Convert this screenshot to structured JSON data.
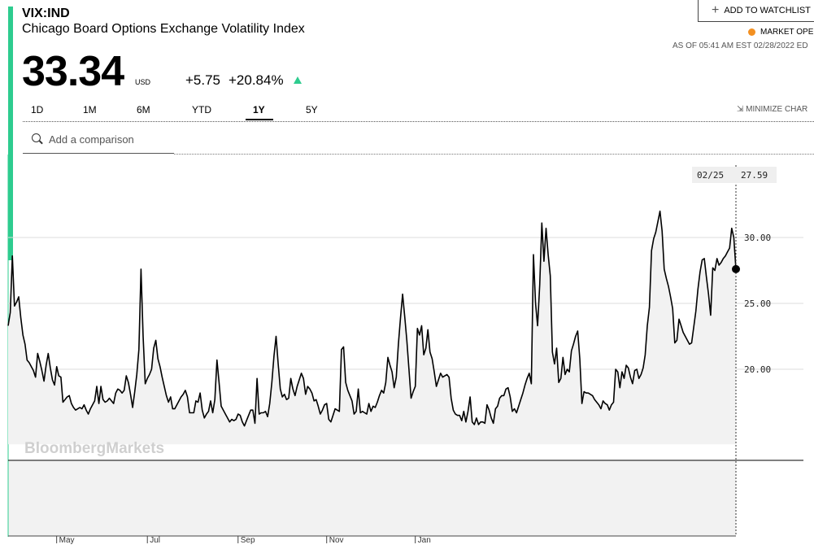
{
  "header": {
    "ticker": "VIX:IND",
    "full_name": "Chicago Board Options Exchange Volatility Index",
    "price": "33.34",
    "currency": "USD",
    "change": "+5.75",
    "change_pct": "+20.84%",
    "direction": "up",
    "watchlist_label": "ADD TO WATCHLIST",
    "market_status": "MARKET OPE",
    "as_of": "AS OF 05:41 AM EST 02/28/2022 ED"
  },
  "colors": {
    "accent": "#2ecc8f",
    "market_dot": "#f39021",
    "line": "#000000",
    "area_fill": "#f2f2f2"
  },
  "ranges": {
    "tabs": [
      {
        "label": "1D"
      },
      {
        "label": "1M"
      },
      {
        "label": "6M"
      },
      {
        "label": "YTD"
      },
      {
        "label": "1Y"
      },
      {
        "label": "5Y"
      }
    ],
    "active": "1Y",
    "minimize_label": "MINIMIZE CHAR"
  },
  "comparison": {
    "placeholder": "Add a comparison"
  },
  "watermark": "BloombergMarkets",
  "cursor": {
    "date": "02/25",
    "value": "27.59"
  },
  "chart_data": {
    "type": "area",
    "title": "",
    "xlabel": "",
    "ylabel": "",
    "ylim": [
      8.0,
      38.0
    ],
    "yticks": [
      {
        "value": 20,
        "label": "20.00"
      },
      {
        "value": 25,
        "label": "25.00"
      },
      {
        "value": 30,
        "label": "30.00"
      }
    ],
    "xticks": [
      {
        "label": "May",
        "index": 23
      },
      {
        "label": "Jul",
        "index": 66
      },
      {
        "label": "Sep",
        "index": 109
      },
      {
        "label": "Nov",
        "index": 151
      },
      {
        "label": "Jan",
        "index": 193
      }
    ],
    "baseline": 14.3,
    "grid": true,
    "legend": "none",
    "series": [
      {
        "values": [
          23.3,
          24.3,
          28.6,
          24.8,
          25.1,
          25.5,
          23.9,
          22.6,
          21.9,
          20.7,
          20.5,
          20.2,
          19.9,
          19.4,
          21.2,
          20.6,
          19.9,
          19.1,
          20.3,
          21.2,
          20.1,
          19.2,
          18.8,
          20.2,
          19.5,
          19.4,
          17.5,
          17.7,
          17.9,
          18.0,
          17.4,
          17.1,
          16.9,
          17.0,
          17.1,
          17.0,
          17.3,
          16.9,
          16.6,
          17.0,
          17.3,
          17.6,
          18.7,
          17.4,
          18.7,
          17.7,
          17.5,
          17.6,
          17.8,
          17.6,
          17.4,
          18.2,
          18.5,
          18.4,
          18.2,
          18.4,
          19.5,
          19.0,
          18.1,
          17.1,
          18.3,
          19.6,
          21.5,
          27.6,
          22.5,
          18.9,
          19.3,
          19.6,
          20.0,
          21.6,
          22.2,
          20.8,
          20.2,
          19.4,
          18.7,
          18.0,
          17.5,
          17.9,
          17.0,
          17.0,
          17.3,
          17.6,
          17.9,
          18.1,
          18.4,
          17.9,
          16.7,
          16.7,
          16.7,
          17.6,
          17.5,
          18.2,
          16.9,
          16.3,
          16.6,
          16.8,
          17.6,
          16.7,
          17.7,
          20.7,
          19.0,
          17.2,
          16.9,
          16.6,
          16.3,
          16.0,
          16.2,
          16.1,
          16.2,
          16.6,
          16.5,
          16.0,
          15.7,
          16.1,
          16.5,
          16.9,
          16.9,
          15.9,
          19.3,
          16.6,
          16.7,
          16.7,
          16.8,
          16.4,
          17.4,
          19.0,
          21.0,
          22.5,
          20.4,
          18.5,
          17.9,
          18.1,
          17.7,
          17.8,
          19.3,
          18.5,
          18.0,
          18.7,
          19.2,
          19.7,
          19.3,
          18.1,
          18.7,
          18.5,
          18.2,
          17.6,
          17.7,
          17.2,
          16.6,
          16.9,
          17.3,
          17.4,
          16.2,
          16.0,
          16.5,
          17.0,
          16.9,
          16.8,
          21.5,
          21.7,
          19.0,
          18.4,
          18.0,
          17.6,
          16.6,
          16.8,
          18.5,
          16.7,
          16.8,
          16.7,
          16.6,
          17.4,
          16.8,
          17.2,
          17.1,
          17.5,
          18.0,
          18.4,
          18.2,
          19.0,
          20.9,
          20.3,
          19.8,
          18.6,
          19.4,
          21.9,
          23.9,
          25.7,
          24.0,
          22.2,
          20.0,
          17.8,
          18.3,
          18.7,
          23.1,
          22.6,
          23.3,
          21.1,
          21.6,
          23.0,
          21.3,
          20.8,
          19.8,
          18.7,
          19.2,
          19.7,
          19.4,
          19.5,
          19.6,
          19.4,
          17.8,
          16.9,
          16.6,
          16.5,
          16.5,
          16.1,
          16.8,
          16.0,
          16.8,
          17.9,
          16.0,
          15.8,
          16.3,
          15.8,
          16.0,
          16.0,
          15.9,
          17.3,
          16.9,
          16.3,
          15.9,
          17.0,
          17.2,
          17.8,
          18.0,
          18.0,
          18.5,
          18.6,
          17.9,
          16.8,
          17.0,
          16.7,
          17.2,
          17.7,
          18.2,
          18.8,
          19.3,
          19.7,
          18.9,
          28.7,
          25.0,
          23.3,
          26.4,
          31.1,
          28.2,
          30.7,
          28.7,
          27.1,
          21.3,
          20.4,
          21.6,
          19.0,
          19.3,
          20.9,
          19.6,
          20.0,
          19.8,
          21.4,
          21.9,
          22.5,
          22.9,
          20.8,
          17.4,
          18.3,
          18.2,
          18.2,
          18.1,
          18.0,
          17.7,
          17.5,
          17.3,
          17.0,
          17.6,
          17.4,
          17.3,
          16.9,
          17.3,
          17.5,
          20.0,
          19.8,
          18.6,
          19.8,
          19.3,
          20.3,
          20.1,
          19.4,
          18.9,
          19.9,
          20.0,
          19.3,
          19.6,
          20.1,
          21.1,
          23.3,
          24.7,
          29.0,
          29.9,
          30.4,
          31.2,
          32.0,
          30.5,
          27.6,
          26.9,
          26.3,
          25.5,
          24.6,
          22.0,
          22.2,
          23.8,
          23.3,
          22.8,
          22.5,
          22.2,
          21.9,
          22.0,
          23.2,
          24.4,
          26.1,
          27.4,
          28.3,
          28.4,
          27.0,
          25.7,
          24.1,
          27.7,
          27.5,
          28.4,
          27.9,
          28.1,
          28.4,
          28.6,
          28.9,
          29.2,
          30.7,
          30.0,
          27.6
        ]
      }
    ]
  }
}
